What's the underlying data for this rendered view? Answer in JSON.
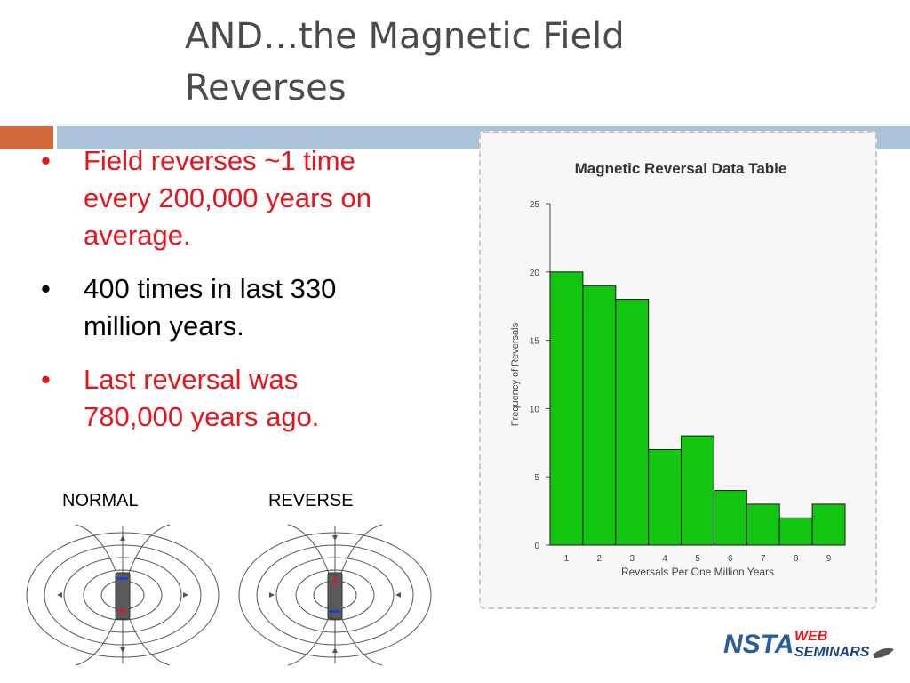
{
  "slide": {
    "title_line1": "AND…the Magnetic Field",
    "title_line2": "Reverses",
    "bullets": [
      {
        "text_line1": "Field reverses ~1 time",
        "text_line2": "every 200,000 years on",
        "text_line3": "average.",
        "color": "#e8141a"
      },
      {
        "text_line1": "400 times in last 330",
        "text_line2": "million years.",
        "color": "#000000"
      },
      {
        "text_line1": "Last reversal was",
        "text_line2": "780,000 years ago.",
        "color": "#e8141a"
      }
    ],
    "bullet_char": "•",
    "magnets": {
      "normal_label": "NORMAL",
      "reverse_label": "REVERSE",
      "minus_sign": "−",
      "plus_sign": "+"
    },
    "logo": {
      "nsta": "NSTA",
      "web": "WEB",
      "seminars": "SEMINARS"
    },
    "accent_colors": {
      "orange": "#d2693a",
      "blue": "#a9c2d8",
      "bar_green": "#11c511",
      "bullet_red": "#e8141a"
    }
  },
  "chart_data": {
    "type": "bar",
    "title": "Magnetic Reversal Data Table",
    "xlabel": "Reversals Per One Million Years",
    "ylabel": "Frequency of Reversals",
    "categories": [
      "1",
      "2",
      "3",
      "4",
      "5",
      "6",
      "7",
      "8",
      "9"
    ],
    "values": [
      20,
      19,
      18,
      7,
      8,
      4,
      3,
      2,
      3
    ],
    "ylim": [
      0,
      25
    ],
    "yticks": [
      0,
      5,
      10,
      15,
      20,
      25
    ],
    "grid": false,
    "legend": "none",
    "bar_color": "#11c511"
  }
}
